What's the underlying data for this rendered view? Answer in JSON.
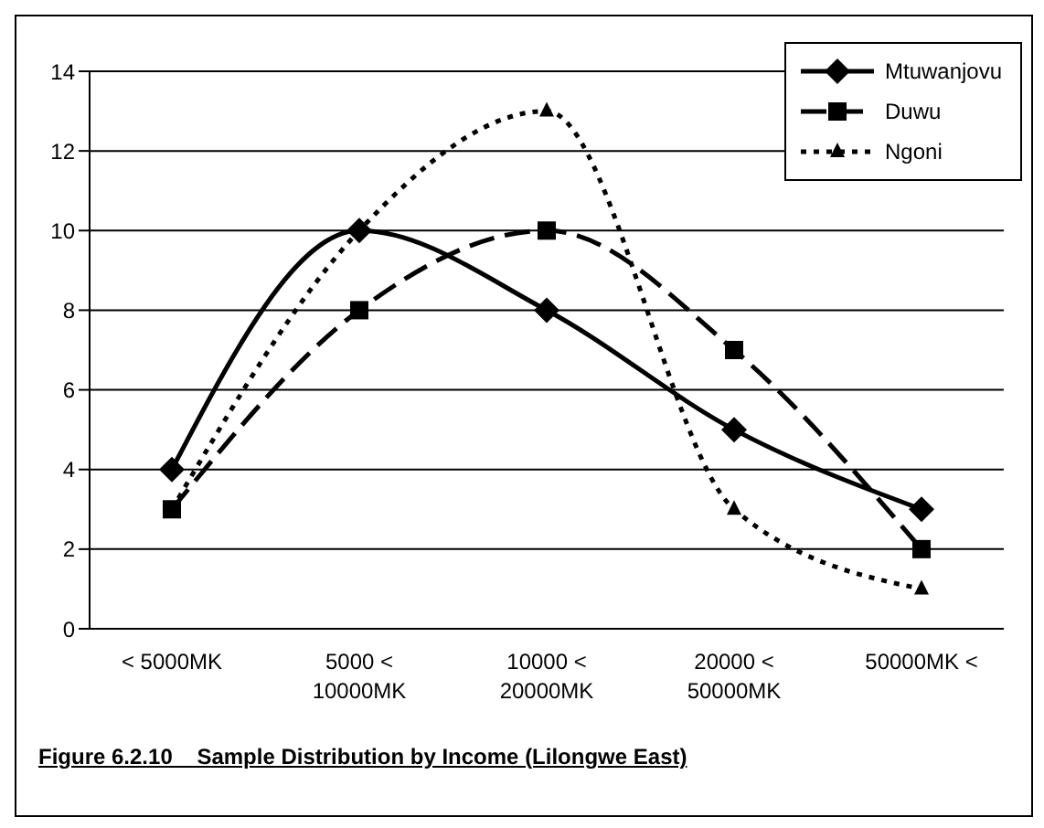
{
  "chart_data": {
    "type": "line",
    "categories": [
      "< 5000MK",
      "5000 <\n10000MK",
      "10000 <\n20000MK",
      "20000 <\n50000MK",
      "50000MK <"
    ],
    "series": [
      {
        "name": "Mtuwanjovu",
        "color": "#000000",
        "values": [
          4,
          10,
          8,
          5,
          3
        ],
        "marker": "diamond",
        "line_style": "solid"
      },
      {
        "name": "Duwu",
        "color": "#000000",
        "values": [
          3,
          8,
          10,
          7,
          2
        ],
        "marker": "square",
        "line_style": "dashed"
      },
      {
        "name": "Ngoni",
        "color": "#000000",
        "values": [
          3,
          10,
          13,
          3,
          1
        ],
        "marker": "triangle",
        "line_style": "dotted"
      }
    ],
    "ylim": [
      0,
      14
    ],
    "yticks": [
      0,
      2,
      4,
      6,
      8,
      10,
      12,
      14
    ],
    "grid": "y",
    "legend": "top right",
    "annotations": [
      "Figure 6.2.10    Sample Distribution by Income (Lilongwe East)"
    ]
  }
}
